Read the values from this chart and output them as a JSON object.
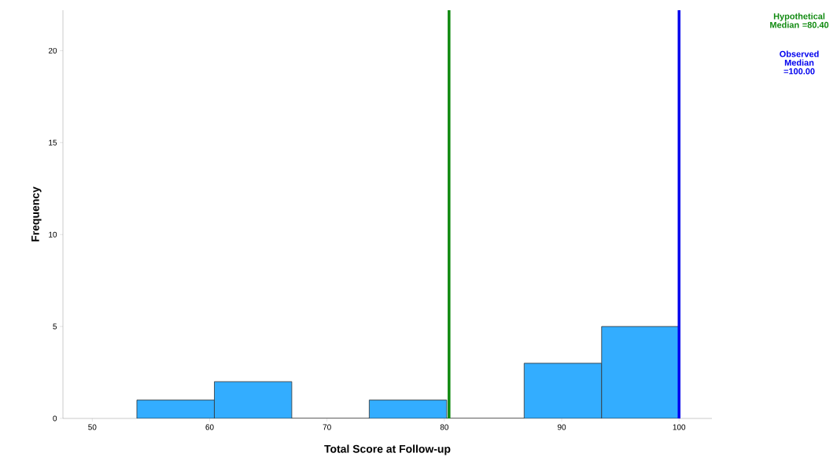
{
  "chart_data": {
    "type": "histogram",
    "xlabel": "Total Score at Follow-up",
    "ylabel": "Frequency",
    "bins": [
      53.8,
      60.4,
      67.0,
      73.6,
      80.2,
      86.8,
      93.4,
      100.0
    ],
    "values": [
      1,
      2,
      0,
      1,
      0,
      3,
      5
    ],
    "color": "#33adff",
    "xlim": [
      47.5,
      102.8
    ],
    "ylim": [
      0,
      22.2
    ],
    "xticks": [
      50,
      60,
      70,
      80,
      90,
      100
    ],
    "yticks": [
      0,
      5,
      10,
      15,
      20
    ],
    "grid": false,
    "ref_lines": [
      {
        "axis": "x",
        "value": 80.4,
        "label": "Hypothetical Median =80.40",
        "color": "#108a10"
      },
      {
        "axis": "x",
        "value": 100,
        "label": "Observed Median =100.00",
        "color": "#0000ee"
      }
    ]
  }
}
